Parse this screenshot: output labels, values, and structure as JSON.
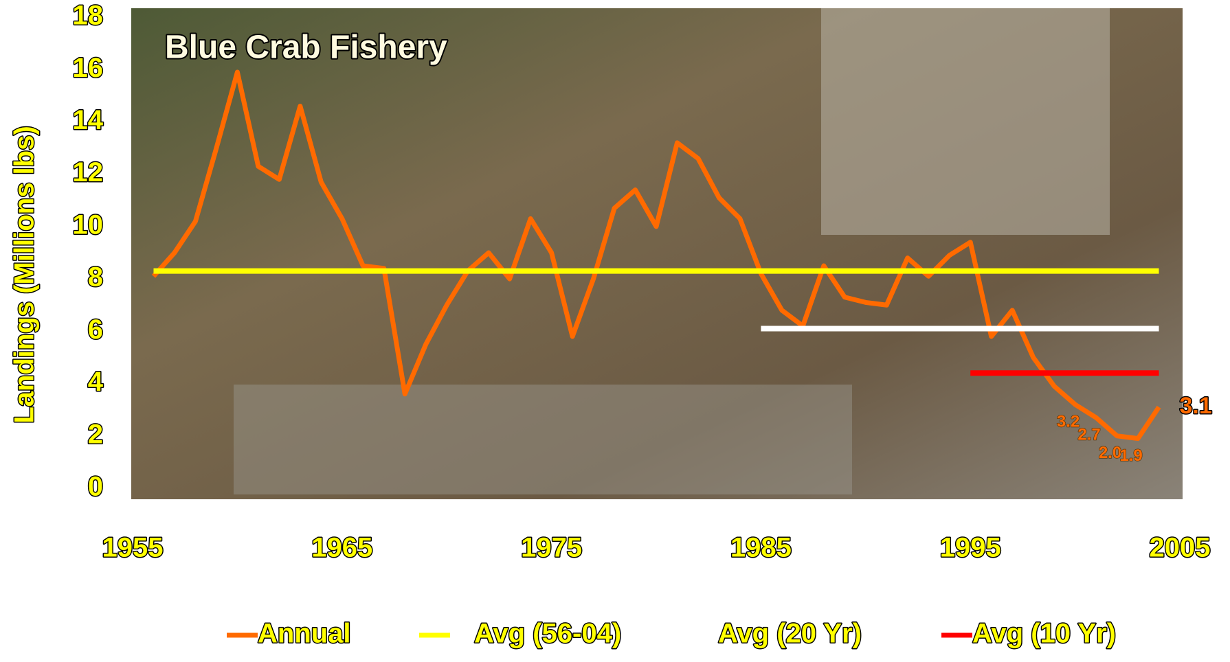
{
  "chart_data": {
    "type": "line",
    "title": "Blue Crab Fishery",
    "y_label": "Landings (Millions lbs)",
    "xlim": [
      1955,
      2005
    ],
    "xticks": [
      1955,
      1965,
      1975,
      1985,
      1995,
      2005
    ],
    "ylim": [
      0,
      18
    ],
    "yticks": [
      0,
      2,
      4,
      6,
      8,
      10,
      12,
      14,
      16,
      18
    ],
    "legend": "bottom",
    "series": [
      {
        "name": "Annual",
        "color": "#ff6a00",
        "x": [
          1956,
          1957,
          1958,
          1959,
          1960,
          1961,
          1962,
          1963,
          1964,
          1965,
          1966,
          1967,
          1968,
          1969,
          1970,
          1971,
          1972,
          1973,
          1974,
          1975,
          1976,
          1977,
          1978,
          1979,
          1980,
          1981,
          1982,
          1983,
          1984,
          1985,
          1986,
          1987,
          1988,
          1989,
          1990,
          1991,
          1992,
          1993,
          1994,
          1995,
          1996,
          1997,
          1998,
          1999,
          2000,
          2001,
          2002,
          2003,
          2004
        ],
        "values": [
          8.1,
          9,
          10.2,
          13,
          15.9,
          12.3,
          11.8,
          14.6,
          11.7,
          10.3,
          8.5,
          8.4,
          3.6,
          5.5,
          7,
          8.3,
          9,
          8,
          10.3,
          9,
          5.8,
          8,
          10.7,
          11.4,
          10,
          13.2,
          12.6,
          11.1,
          10.3,
          8.2,
          6.8,
          6.2,
          8.5,
          7.3,
          7.1,
          7,
          8.8,
          8.1,
          8.9,
          9.4,
          5.8,
          6.8,
          5,
          3.9,
          3.2,
          2.7,
          2.0,
          1.9,
          3.1
        ],
        "value_labels": [
          null,
          null,
          null,
          null,
          null,
          null,
          null,
          null,
          null,
          null,
          null,
          null,
          null,
          null,
          null,
          null,
          null,
          null,
          null,
          null,
          null,
          null,
          null,
          null,
          null,
          null,
          null,
          null,
          null,
          null,
          null,
          null,
          null,
          null,
          null,
          null,
          null,
          null,
          null,
          null,
          null,
          null,
          null,
          null,
          "3.2",
          "2.7",
          "2.0",
          "1.9",
          "3.1"
        ]
      },
      {
        "name": "Avg (56-04)",
        "color": "#ffff00",
        "x": [
          1956,
          2004
        ],
        "values": [
          8.3,
          8.3
        ]
      },
      {
        "name": "Avg (20 Yr)",
        "color": "#ffffff",
        "x": [
          1985,
          2004
        ],
        "values": [
          6.1,
          6.1
        ]
      },
      {
        "name": "Avg (10 Yr)",
        "color": "#ff0000",
        "x": [
          1995,
          2004
        ],
        "values": [
          4.4,
          4.4
        ]
      }
    ]
  }
}
